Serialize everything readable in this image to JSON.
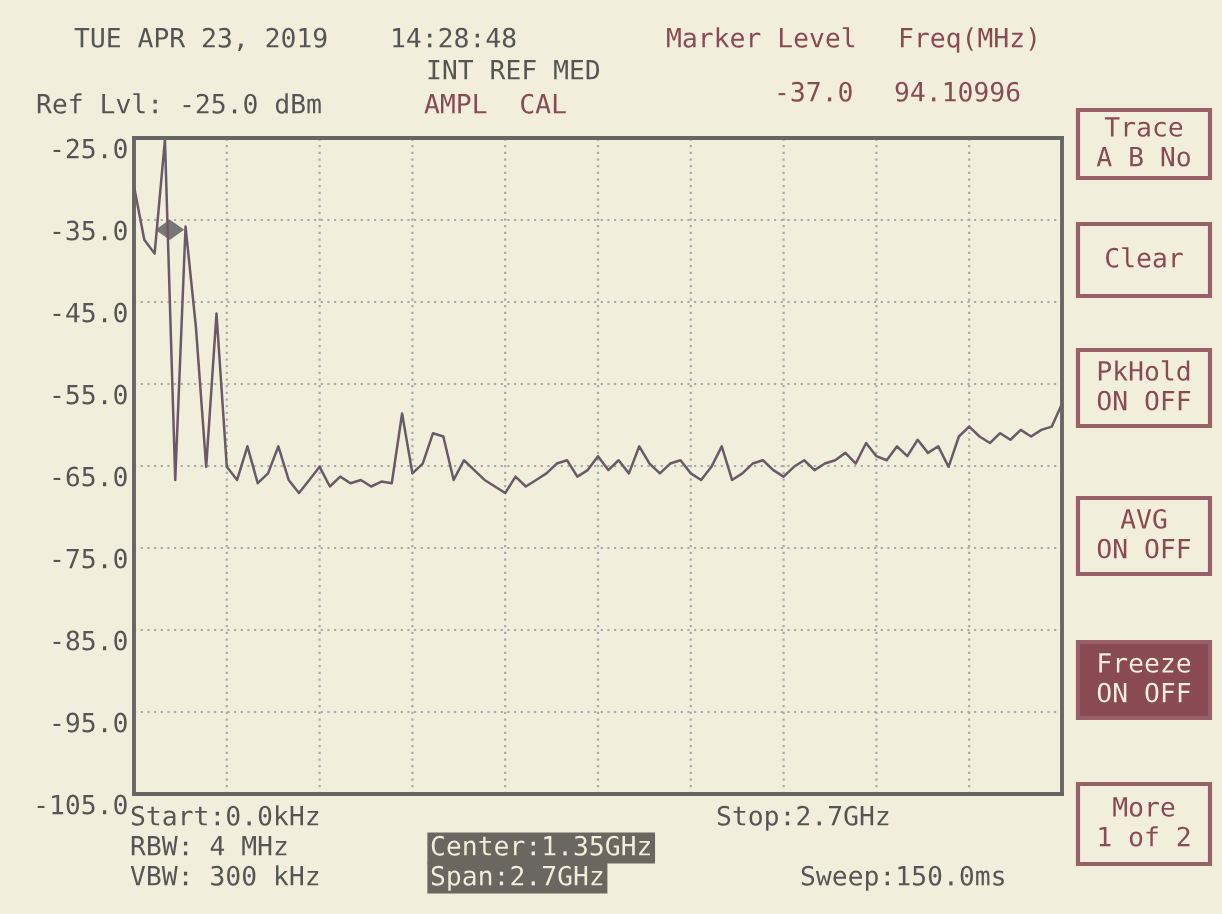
{
  "chart_data": {
    "type": "line",
    "series": [
      {
        "color": "#6a5a68",
        "values": [
          -30.9,
          -37.4,
          -39.1,
          -25.2,
          -66.7,
          -35.8,
          -48.0,
          -65.1,
          -46.4,
          -65.1,
          -66.7,
          -62.6,
          -67.1,
          -65.9,
          -62.6,
          -66.7,
          -68.3,
          -66.7,
          -65.1,
          -67.5,
          -66.3,
          -67.1,
          -66.7,
          -67.5,
          -66.9,
          -67.1,
          -58.6,
          -65.9,
          -64.7,
          -61.0,
          -61.4,
          -66.7,
          -64.3,
          -65.5,
          -66.7,
          -67.5,
          -68.3,
          -66.3,
          -67.5,
          -66.7,
          -65.9,
          -64.7,
          -64.3,
          -66.3,
          -65.5,
          -63.8,
          -65.5,
          -64.3,
          -65.9,
          -62.6,
          -64.7,
          -65.9,
          -64.7,
          -64.3,
          -65.9,
          -66.7,
          -65.1,
          -62.6,
          -66.7,
          -65.9,
          -64.7,
          -64.3,
          -65.5,
          -66.3,
          -65.1,
          -64.3,
          -65.5,
          -64.7,
          -64.3,
          -63.4,
          -64.7,
          -62.2,
          -63.8,
          -64.3,
          -62.6,
          -63.8,
          -61.8,
          -63.4,
          -62.6,
          -65.1,
          -61.4,
          -60.2,
          -61.4,
          -62.2,
          -61.0,
          -61.8,
          -60.6,
          -61.4,
          -60.6,
          -60.2,
          -57.4
        ]
      }
    ],
    "categories": [
      null,
      null,
      null,
      null,
      null,
      null,
      null,
      null,
      null,
      null,
      null,
      null,
      null,
      null,
      null,
      null,
      null,
      null,
      null,
      null,
      null,
      null,
      null,
      null,
      null,
      null,
      null,
      null,
      null,
      null,
      null,
      null,
      null,
      null,
      null,
      null,
      null,
      null,
      null,
      null,
      null,
      null,
      null,
      null,
      null,
      null,
      null,
      null,
      null,
      null,
      null,
      null,
      null,
      null,
      null,
      null,
      null,
      null,
      null,
      null,
      null,
      null,
      null,
      null,
      null,
      null,
      null,
      null,
      null,
      null,
      null,
      null,
      null,
      null,
      null,
      null,
      null,
      null,
      null,
      null,
      null,
      null,
      null,
      null,
      null,
      null,
      null,
      null,
      null,
      null,
      null
    ],
    "ylim": [
      -105,
      -25
    ],
    "yticks": [
      {
        "value": -25,
        "label": "-25.0"
      },
      {
        "value": -35,
        "label": "-35.0"
      },
      {
        "value": -45,
        "label": "-45.0"
      },
      {
        "value": -55,
        "label": "-55.0"
      },
      {
        "value": -65,
        "label": "-65.0"
      },
      {
        "value": -75,
        "label": "-75.0"
      },
      {
        "value": -85,
        "label": "-85.0"
      },
      {
        "value": -95,
        "label": "-95.0"
      },
      {
        "value": -105,
        "label": "-105.0"
      }
    ],
    "tick_labels": "y",
    "grid": true,
    "line_style": "solid",
    "marker": "none",
    "legend": false,
    "annotations": [
      "TUE APR 23, 2019",
      "14:28:48",
      "Marker Level",
      "Freq(MHz)",
      "INT REF MED",
      "-37.0",
      "94.10996",
      "Ref Lvl: -25.0 dBm",
      "AMPL  CAL",
      "Start:0.0kHz",
      "Stop:2.7GHz",
      "RBW: 4 MHz",
      "Center:1.35GHz",
      "VBW: 300 kHz",
      "Span:2.7GHz",
      "Sweep:150.0ms",
      "Trace\nA B No",
      "Clear",
      "PkHold\nON OFF",
      "AVG\nON OFF",
      "Freeze\nON OFF",
      "More\n1 of 2"
    ]
  }
}
